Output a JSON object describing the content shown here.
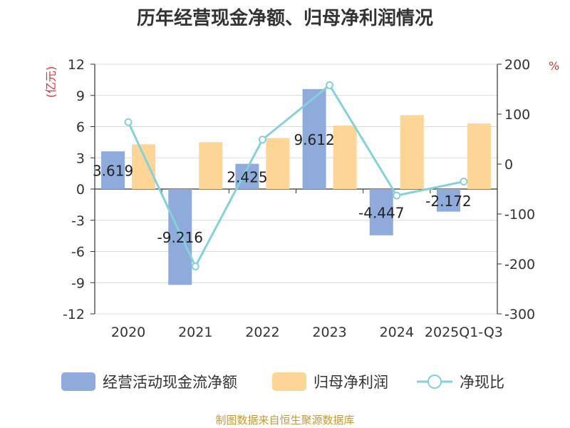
{
  "chart_data": {
    "type": "bar+line",
    "title": "历年经营现金净额、归母净利润情况",
    "categories": [
      "2020",
      "2021",
      "2022",
      "2023",
      "2024",
      "2025Q1-Q3"
    ],
    "series": [
      {
        "name": "经营活动现金流净额",
        "type": "bar",
        "axis": "left",
        "color": "#8eabdb",
        "values": [
          3.619,
          -9.216,
          2.425,
          9.612,
          -4.447,
          -2.172
        ],
        "labels": [
          "3.619",
          "-9.216",
          "2.425",
          "9.612",
          "-4.447",
          "-2.172"
        ]
      },
      {
        "name": "归母净利润",
        "type": "bar",
        "axis": "left",
        "color": "#fdd597",
        "values": [
          4.3,
          4.5,
          4.9,
          6.1,
          7.1,
          6.3
        ]
      },
      {
        "name": "净现比",
        "type": "line",
        "axis": "right",
        "color": "#86d0d8",
        "values": [
          84,
          -205,
          49,
          158,
          -63,
          -35
        ]
      }
    ],
    "y_left": {
      "unit": "(亿元)",
      "ticks": [
        "12",
        "9",
        "6",
        "3",
        "0",
        "-3",
        "-6",
        "-9",
        "-12"
      ],
      "ylim": [
        -12,
        12
      ]
    },
    "y_right": {
      "unit": "%",
      "ticks": [
        "200",
        "100",
        "0",
        "-100",
        "-200",
        "-300"
      ],
      "ylim": [
        -300,
        200
      ]
    },
    "grid": true,
    "legend_position": "bottom",
    "source": "制图数据来自恒生聚源数据库"
  }
}
